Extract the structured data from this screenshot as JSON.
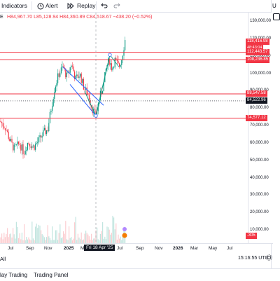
{
  "toolbar": {
    "indicators_label": "Indicators",
    "alert_label": "Alert",
    "replay_label": "Replay",
    "undo_icon": "undo-icon",
    "redo_icon": "redo-icon",
    "right_letter": "U"
  },
  "legend": {
    "symbol_letter": "E",
    "ohlc": "H84,967.70 L85,128.94 H84,360.89 C84,518.67 −438.20 (−0.52%)"
  },
  "price_axis": {
    "labels": [
      "130,000.00",
      "120,000.00",
      "110,000.00",
      "100,000.00",
      "90,000.00",
      "80,000.00",
      "70,000.00",
      "60,000.00",
      "50,000.00",
      "40,000.00",
      "30,000.00",
      "20,000.00",
      "10,000.00"
    ],
    "tags": [
      {
        "text": "118,416.98",
        "sub": "48:43:04",
        "color": "#f23645"
      },
      {
        "text": "112,443.57",
        "color": "#f23645"
      },
      {
        "text": "108,236.85",
        "color": "#f23645"
      },
      {
        "text": "88,547.58",
        "color": "#f23645"
      },
      {
        "text": "84,522.96",
        "color": "#131722"
      },
      {
        "text": "74,577.12",
        "color": "#f23645"
      },
      {
        "text": ".305",
        "color": "#f23645"
      }
    ]
  },
  "time_axis": {
    "labels": [
      "Jul",
      "Sep",
      "Nov",
      "2025",
      "Mar",
      "Jul",
      "Sep",
      "Nov",
      "2026",
      "Mar",
      "May",
      "Jul"
    ],
    "cursor_label": "Fri 18 Apr '25"
  },
  "bottom_bar": {
    "range_all": "All",
    "tab_trading": "lay Trading",
    "tab_panel": "Trading Panel",
    "time_utc": "15:16:55 UTC"
  },
  "colors": {
    "up": "#089981",
    "down": "#f23645",
    "level_line": "#f23645",
    "channel": "#2962ff",
    "trend": "#089981"
  }
}
